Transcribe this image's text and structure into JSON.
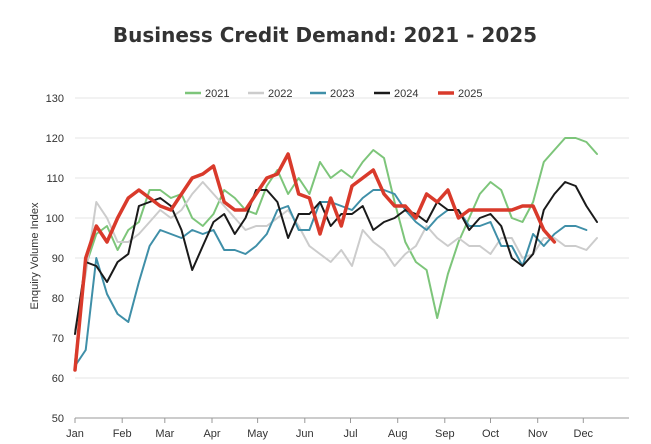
{
  "chart_data": {
    "type": "line",
    "title": "Business Credit Demand: 2021 - 2025",
    "xlabel": "",
    "ylabel": "Enquiry Volume Index",
    "ylim": [
      50,
      130
    ],
    "yticks": [
      50,
      60,
      70,
      80,
      90,
      100,
      110,
      120,
      130
    ],
    "xlim": [
      1,
      53
    ],
    "xticks": [
      {
        "label": "Jan",
        "week": 1
      },
      {
        "label": "Feb",
        "week": 5.43
      },
      {
        "label": "Mar",
        "week": 9.43
      },
      {
        "label": "Apr",
        "week": 13.86
      },
      {
        "label": "May",
        "week": 18.14
      },
      {
        "label": "Jun",
        "week": 22.57
      },
      {
        "label": "Jul",
        "week": 26.86
      },
      {
        "label": "Aug",
        "week": 31.29
      },
      {
        "label": "Sep",
        "week": 35.71
      },
      {
        "label": "Oct",
        "week": 40
      },
      {
        "label": "Nov",
        "week": 44.43
      },
      {
        "label": "Dec",
        "week": 48.71
      }
    ],
    "grid": true,
    "legend_position": "top",
    "series": [
      {
        "name": "2021",
        "color": "#7dc57a",
        "width": 2,
        "values": [
          64,
          88,
          96,
          98,
          92,
          97,
          99,
          107,
          107,
          105,
          106,
          100,
          98,
          101,
          107,
          105,
          102,
          101,
          108,
          112,
          106,
          110,
          106,
          114,
          110,
          112,
          110,
          114,
          117,
          115,
          104,
          94,
          89,
          87,
          75,
          86,
          94,
          100,
          106,
          109,
          107,
          100,
          99,
          104,
          114,
          117,
          120,
          120,
          119,
          116
        ]
      },
      {
        "name": "2022",
        "color": "#cccccc",
        "width": 2,
        "values": [
          72,
          86,
          104,
          100,
          94,
          94,
          96,
          99,
          102,
          100,
          102,
          106,
          109,
          106,
          103,
          100,
          97,
          98,
          98,
          100,
          102,
          98,
          93,
          91,
          89,
          92,
          88,
          97,
          94,
          92,
          88,
          91,
          93,
          98,
          95,
          93,
          95,
          93,
          93,
          91,
          95,
          95,
          90,
          91,
          95,
          95,
          93,
          93,
          92,
          95
        ]
      },
      {
        "name": "2023",
        "color": "#3f8fa8",
        "width": 2,
        "values": [
          63,
          67,
          90,
          81,
          76,
          74,
          84,
          93,
          97,
          96,
          95,
          97,
          96,
          97,
          92,
          92,
          91,
          93,
          96,
          102,
          103,
          97,
          97,
          104,
          104,
          103,
          102,
          105,
          107,
          107,
          106,
          102,
          99,
          97,
          100,
          102,
          102,
          98,
          98,
          99,
          93,
          93,
          88,
          96,
          93,
          96,
          98,
          98,
          97
        ]
      },
      {
        "name": "2024",
        "color": "#1a1a1a",
        "width": 2,
        "values": [
          71,
          89,
          88,
          84,
          89,
          91,
          103,
          104,
          105,
          103,
          97,
          87,
          93,
          99,
          101,
          96,
          100,
          107,
          107,
          104,
          95,
          101,
          101,
          104,
          98,
          101,
          101,
          103,
          97,
          99,
          100,
          102,
          101,
          99,
          104,
          102,
          102,
          97,
          100,
          101,
          98,
          90,
          88,
          91,
          102,
          106,
          109,
          108,
          103,
          99
        ]
      },
      {
        "name": "2025",
        "color": "#d93a2b",
        "width": 3.5,
        "values": [
          62,
          90,
          98,
          94,
          100,
          105,
          107,
          105,
          103,
          102,
          106,
          110,
          111,
          113,
          104,
          102,
          102,
          106,
          110,
          111,
          116,
          106,
          105,
          96,
          105,
          98,
          108,
          110,
          112,
          106,
          103,
          103,
          100,
          106,
          104,
          107,
          100,
          102,
          102,
          102,
          102,
          102,
          103,
          103,
          97,
          94
        ]
      }
    ]
  }
}
